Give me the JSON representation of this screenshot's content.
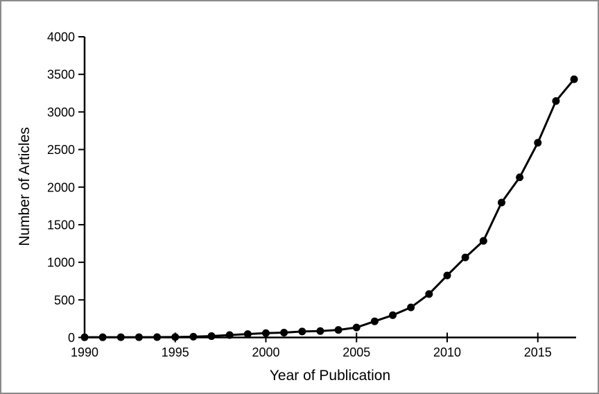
{
  "frame": {
    "border_color": "#8a8a8a",
    "background_color": "#ffffff"
  },
  "chart_data": {
    "type": "line",
    "title": "",
    "xlabel": "Year of Publication",
    "ylabel": "Number of Articles",
    "x": [
      1990,
      1991,
      1992,
      1993,
      1994,
      1995,
      1996,
      1997,
      1998,
      1999,
      2000,
      2001,
      2002,
      2003,
      2004,
      2005,
      2006,
      2007,
      2008,
      2009,
      2010,
      2011,
      2012,
      2013,
      2014,
      2015,
      2016,
      2017
    ],
    "series": [
      {
        "name": "Number of Articles",
        "values": [
          3,
          3,
          4,
          4,
          5,
          6,
          10,
          18,
          32,
          45,
          58,
          65,
          80,
          85,
          100,
          133,
          215,
          297,
          400,
          578,
          825,
          1065,
          1285,
          1795,
          2130,
          2590,
          3145,
          3435
        ],
        "color": "#000000",
        "marker": "filled-circle"
      }
    ],
    "xlim": [
      1990,
      2017
    ],
    "ylim": [
      0,
      4000
    ],
    "x_ticks": [
      1990,
      1995,
      2000,
      2005,
      2010,
      2015
    ],
    "y_ticks": [
      0,
      500,
      1000,
      1500,
      2000,
      2500,
      3000,
      3500,
      4000
    ],
    "grid": false,
    "legend": "none"
  }
}
